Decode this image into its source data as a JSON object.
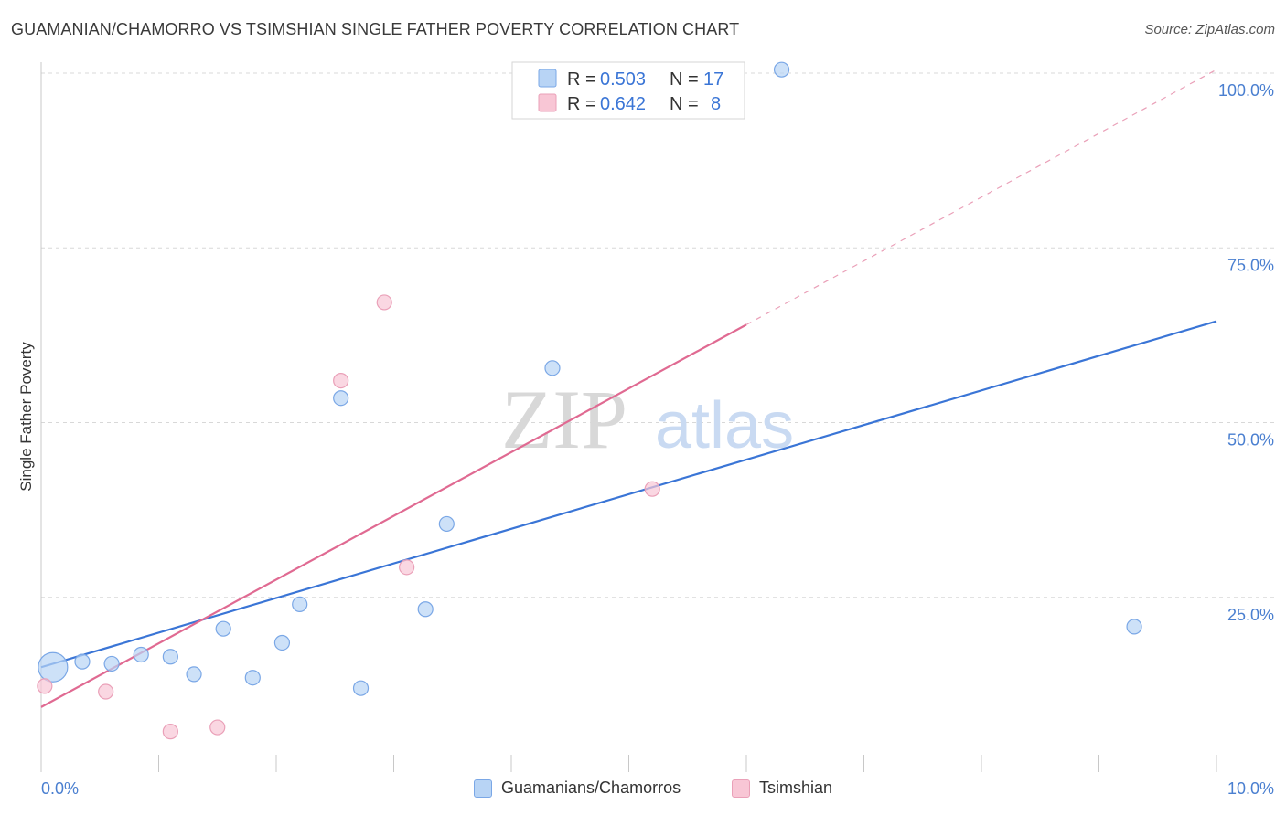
{
  "title": "GUAMANIAN/CHAMORRO VS TSIMSHIAN SINGLE FATHER POVERTY CORRELATION CHART",
  "source": "Source: ZipAtlas.com",
  "watermark": {
    "zip": "ZIP",
    "atlas": "atlas"
  },
  "colors": {
    "blue": "#3a75d6",
    "blue_fill": "#b8d4f5",
    "pink": "#e06a92",
    "pink_fill": "#f8c6d5",
    "grid": "#d8d8d8"
  },
  "legend": {
    "rows": [
      {
        "r_label": "R = ",
        "r_value": "0.503",
        "n_label": "N = ",
        "n_value": "17"
      },
      {
        "r_label": "R = ",
        "r_value": "0.642",
        "n_label": "N = ",
        "n_value": "8"
      }
    ]
  },
  "bottom_legend": [
    "Guamanians/Chamorros",
    "Tsimshian"
  ],
  "chart_data": {
    "type": "scatter",
    "title": "GUAMANIAN/CHAMORRO VS TSIMSHIAN SINGLE FATHER POVERTY CORRELATION CHART",
    "xlabel": "",
    "ylabel": "Single Father Poverty",
    "xlim": [
      0,
      10
    ],
    "ylim": [
      0,
      105
    ],
    "x_tick_labels": [
      "0.0%",
      "10.0%"
    ],
    "y_tick_labels": [
      "25.0%",
      "50.0%",
      "75.0%",
      "100.0%"
    ],
    "y_ticks": [
      25,
      50,
      75,
      100
    ],
    "x_minor_ticks": [
      1,
      2,
      3,
      4,
      5,
      6,
      7,
      8,
      9,
      10
    ],
    "series": [
      {
        "name": "Guamanians/Chamorros",
        "color": "#3a75d6",
        "points": [
          {
            "x": 0.1,
            "y": 15.0,
            "size": "large"
          },
          {
            "x": 0.35,
            "y": 15.8
          },
          {
            "x": 0.6,
            "y": 15.5
          },
          {
            "x": 0.85,
            "y": 16.8
          },
          {
            "x": 1.1,
            "y": 16.5
          },
          {
            "x": 1.3,
            "y": 14.0
          },
          {
            "x": 1.55,
            "y": 20.5
          },
          {
            "x": 1.8,
            "y": 13.5
          },
          {
            "x": 2.05,
            "y": 18.5
          },
          {
            "x": 2.2,
            "y": 24.0
          },
          {
            "x": 2.55,
            "y": 53.5
          },
          {
            "x": 2.72,
            "y": 12.0
          },
          {
            "x": 3.27,
            "y": 23.3
          },
          {
            "x": 3.45,
            "y": 35.5
          },
          {
            "x": 4.35,
            "y": 57.8
          },
          {
            "x": 6.3,
            "y": 100.5
          },
          {
            "x": 9.3,
            "y": 20.8
          }
        ],
        "trend": {
          "x": [
            0,
            10
          ],
          "y": [
            15.0,
            64.5
          ]
        }
      },
      {
        "name": "Tsimshian",
        "color": "#e06a92",
        "points": [
          {
            "x": 0.03,
            "y": 12.3
          },
          {
            "x": 0.55,
            "y": 11.5
          },
          {
            "x": 1.1,
            "y": 5.8
          },
          {
            "x": 1.5,
            "y": 6.4
          },
          {
            "x": 2.55,
            "y": 56.0
          },
          {
            "x": 2.92,
            "y": 67.2
          },
          {
            "x": 3.11,
            "y": 29.3
          },
          {
            "x": 5.2,
            "y": 40.5
          }
        ],
        "trend": {
          "x": [
            0,
            6.0
          ],
          "y": [
            9.3,
            64.0
          ]
        },
        "trend_dashed": {
          "x": [
            6.0,
            10.0
          ],
          "y": [
            64.0,
            100.5
          ]
        }
      }
    ],
    "grid": true,
    "legend_position": "top-center"
  }
}
